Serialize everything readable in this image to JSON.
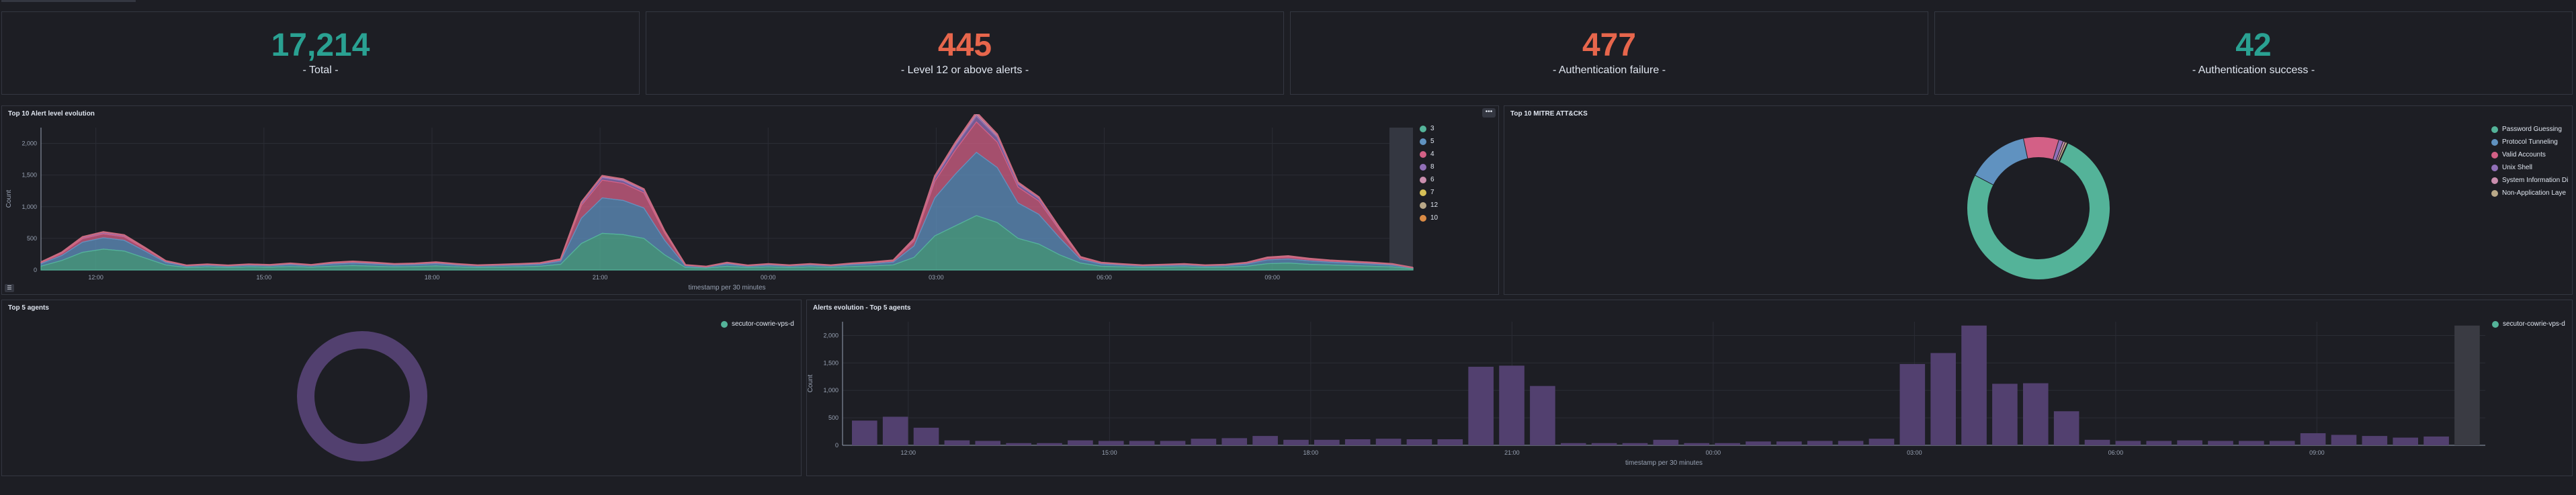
{
  "metrics": [
    {
      "value": "17,214",
      "label": "- Total -",
      "color": "#2aa192"
    },
    {
      "value": "445",
      "label": "- Level 12 or above alerts -",
      "color": "#e7664c"
    },
    {
      "value": "477",
      "label": "- Authentication failure -",
      "color": "#e7664c"
    },
    {
      "value": "42",
      "label": "- Authentication success -",
      "color": "#2aa192"
    }
  ],
  "alert_panel": {
    "title": "Top 10 Alert level evolution",
    "menu_icon": "ellipsis-icon",
    "toggle_icon": "legend-toggle-icon",
    "legend": [
      {
        "label": "3",
        "color": "#54b399"
      },
      {
        "label": "5",
        "color": "#6092c0"
      },
      {
        "label": "4",
        "color": "#d36086"
      },
      {
        "label": "8",
        "color": "#9170b8"
      },
      {
        "label": "6",
        "color": "#ca8eae"
      },
      {
        "label": "7",
        "color": "#d6bf57"
      },
      {
        "label": "12",
        "color": "#b9a888"
      },
      {
        "label": "10",
        "color": "#da8b45"
      }
    ]
  },
  "mitre_panel": {
    "title": "Top 10 MITRE ATT&CKS",
    "legend": [
      {
        "label": "Password Guessing",
        "color": "#54b399"
      },
      {
        "label": "Protocol Tunneling",
        "color": "#6092c0"
      },
      {
        "label": "Valid Accounts",
        "color": "#d36086"
      },
      {
        "label": "Unix Shell",
        "color": "#9170b8"
      },
      {
        "label": "System Information Di",
        "color": "#ca8eae"
      },
      {
        "label": "Non-Application Laye",
        "color": "#b9a888"
      }
    ]
  },
  "agents_panel": {
    "title": "Top 5 agents",
    "legend": [
      {
        "label": "secutor-cowrie-vps-d",
        "color": "#54b399"
      }
    ]
  },
  "evolution_panel": {
    "title": "Alerts evolution - Top 5 agents",
    "legend": [
      {
        "label": "secutor-cowrie-vps-d",
        "color": "#54b399"
      }
    ]
  },
  "chart_data": [
    {
      "type": "area",
      "title": "Top 10 Alert level evolution",
      "xlabel": "timestamp per 30 minutes",
      "ylabel": "Count",
      "ylim": [
        0,
        2250
      ],
      "yticks": [
        "0",
        "500",
        "1,000",
        "1,500",
        "2,000"
      ],
      "xticks": [
        "12:00",
        "15:00",
        "18:00",
        "21:00",
        "00:00",
        "03:00",
        "06:00",
        "09:00"
      ],
      "stacked": true,
      "series": [
        {
          "name": "3",
          "values": [
            60,
            150,
            280,
            330,
            300,
            190,
            80,
            40,
            50,
            40,
            50,
            45,
            55,
            45,
            60,
            70,
            60,
            50,
            55,
            65,
            50,
            40,
            45,
            50,
            60,
            90,
            420,
            580,
            560,
            500,
            240,
            40,
            30,
            60,
            40,
            50,
            40,
            50,
            40,
            55,
            65,
            80,
            200,
            540,
            700,
            860,
            750,
            500,
            410,
            240,
            110,
            60,
            50,
            40,
            45,
            50,
            40,
            45,
            60,
            100,
            110,
            90,
            80,
            70,
            60,
            50,
            20
          ]
        },
        {
          "name": "5",
          "values": [
            40,
            80,
            160,
            180,
            170,
            110,
            40,
            20,
            25,
            20,
            25,
            22,
            30,
            22,
            35,
            40,
            35,
            28,
            30,
            35,
            28,
            22,
            25,
            28,
            30,
            50,
            400,
            560,
            540,
            480,
            230,
            25,
            15,
            35,
            20,
            28,
            22,
            28,
            22,
            30,
            36,
            45,
            180,
            600,
            820,
            1000,
            870,
            560,
            470,
            270,
            60,
            35,
            28,
            22,
            25,
            28,
            22,
            25,
            35,
            60,
            65,
            55,
            45,
            40,
            35,
            28,
            10
          ]
        },
        {
          "name": "4",
          "values": [
            15,
            30,
            55,
            60,
            55,
            35,
            15,
            8,
            10,
            8,
            10,
            9,
            12,
            9,
            14,
            16,
            14,
            11,
            12,
            14,
            11,
            9,
            10,
            11,
            12,
            20,
            200,
            280,
            270,
            240,
            115,
            10,
            6,
            14,
            8,
            11,
            9,
            11,
            9,
            12,
            15,
            18,
            80,
            260,
            380,
            480,
            400,
            250,
            210,
            120,
            25,
            14,
            11,
            9,
            10,
            11,
            9,
            10,
            14,
            25,
            28,
            22,
            18,
            16,
            14,
            11,
            4
          ]
        },
        {
          "name": "8",
          "values": [
            5,
            10,
            15,
            18,
            16,
            10,
            5,
            3,
            3,
            3,
            3,
            3,
            4,
            3,
            5,
            5,
            5,
            4,
            4,
            5,
            4,
            3,
            3,
            4,
            4,
            6,
            30,
            40,
            38,
            34,
            16,
            3,
            2,
            4,
            3,
            4,
            3,
            4,
            3,
            4,
            5,
            6,
            20,
            50,
            70,
            90,
            75,
            45,
            38,
            22,
            8,
            4,
            3,
            3,
            3,
            4,
            3,
            3,
            4,
            8,
            9,
            7,
            6,
            5,
            5,
            4,
            2
          ]
        },
        {
          "name": "6",
          "values": [
            2,
            4,
            6,
            7,
            6,
            4,
            2,
            1,
            1,
            1,
            1,
            1,
            2,
            1,
            2,
            2,
            2,
            2,
            2,
            2,
            2,
            1,
            1,
            2,
            2,
            3,
            12,
            16,
            15,
            14,
            7,
            1,
            1,
            2,
            1,
            2,
            1,
            2,
            1,
            2,
            2,
            3,
            8,
            20,
            28,
            36,
            30,
            18,
            15,
            9,
            3,
            2,
            1,
            1,
            1,
            2,
            1,
            1,
            2,
            3,
            4,
            3,
            2,
            2,
            2,
            2,
            1
          ]
        },
        {
          "name": "7",
          "values": [
            1,
            2,
            3,
            3,
            3,
            2,
            1,
            1,
            1,
            1,
            1,
            1,
            1,
            1,
            1,
            1,
            1,
            1,
            1,
            1,
            1,
            1,
            1,
            1,
            1,
            1,
            5,
            6,
            6,
            5,
            3,
            1,
            0,
            1,
            1,
            1,
            1,
            1,
            1,
            1,
            1,
            1,
            3,
            8,
            10,
            12,
            10,
            6,
            5,
            3,
            1,
            1,
            1,
            1,
            1,
            1,
            1,
            1,
            1,
            1,
            2,
            1,
            1,
            1,
            1,
            1,
            0
          ]
        },
        {
          "name": "12",
          "values": [
            1,
            1,
            2,
            2,
            2,
            1,
            1,
            0,
            0,
            0,
            0,
            0,
            1,
            0,
            1,
            1,
            1,
            0,
            0,
            1,
            0,
            0,
            0,
            0,
            1,
            1,
            3,
            4,
            4,
            4,
            2,
            0,
            0,
            1,
            0,
            0,
            0,
            0,
            0,
            1,
            1,
            1,
            2,
            5,
            6,
            8,
            6,
            4,
            3,
            2,
            1,
            1,
            0,
            0,
            0,
            0,
            0,
            0,
            1,
            1,
            1,
            1,
            1,
            1,
            1,
            0,
            0
          ]
        },
        {
          "name": "10",
          "values": [
            0,
            1,
            1,
            1,
            1,
            1,
            0,
            0,
            0,
            0,
            0,
            0,
            0,
            0,
            0,
            0,
            0,
            0,
            0,
            0,
            0,
            0,
            0,
            0,
            0,
            1,
            2,
            3,
            3,
            2,
            1,
            0,
            0,
            0,
            0,
            0,
            0,
            0,
            0,
            0,
            0,
            0,
            1,
            3,
            4,
            5,
            4,
            2,
            2,
            1,
            0,
            0,
            0,
            0,
            0,
            0,
            0,
            0,
            0,
            1,
            1,
            1,
            0,
            0,
            0,
            0,
            0
          ]
        }
      ]
    },
    {
      "type": "pie",
      "title": "Top 10 MITRE ATT&CKS",
      "donut": true,
      "labels": [
        "Password Guessing",
        "Protocol Tunneling",
        "Valid Accounts",
        "Unix Shell",
        "System Information Di",
        "Non-Application Laye"
      ],
      "values": [
        76,
        14,
        8,
        1,
        0.5,
        0.5
      ]
    },
    {
      "type": "pie",
      "title": "Top 5 agents",
      "donut": true,
      "labels": [
        "secutor-cowrie-vps-d"
      ],
      "values": [
        100
      ]
    },
    {
      "type": "bar",
      "title": "Alerts evolution - Top 5 agents",
      "xlabel": "timestamp per 30 minutes",
      "ylabel": "Count",
      "ylim": [
        0,
        2250
      ],
      "yticks": [
        "0",
        "500",
        "1,000",
        "1,500",
        "2,000"
      ],
      "xticks": [
        "12:00",
        "15:00",
        "18:00",
        "21:00",
        "00:00",
        "03:00",
        "06:00",
        "09:00"
      ],
      "series": [
        {
          "name": "secutor-cowrie-vps-d",
          "values": [
            450,
            520,
            320,
            90,
            80,
            40,
            40,
            90,
            80,
            80,
            80,
            120,
            130,
            170,
            100,
            100,
            110,
            120,
            110,
            110,
            1430,
            1450,
            1080,
            40,
            40,
            40,
            100,
            40,
            40,
            70,
            70,
            80,
            80,
            120,
            1480,
            1680,
            2180,
            1120,
            1130,
            620,
            100,
            80,
            80,
            90,
            80,
            80,
            80,
            220,
            190,
            170,
            140,
            160,
            2180
          ]
        }
      ]
    }
  ]
}
